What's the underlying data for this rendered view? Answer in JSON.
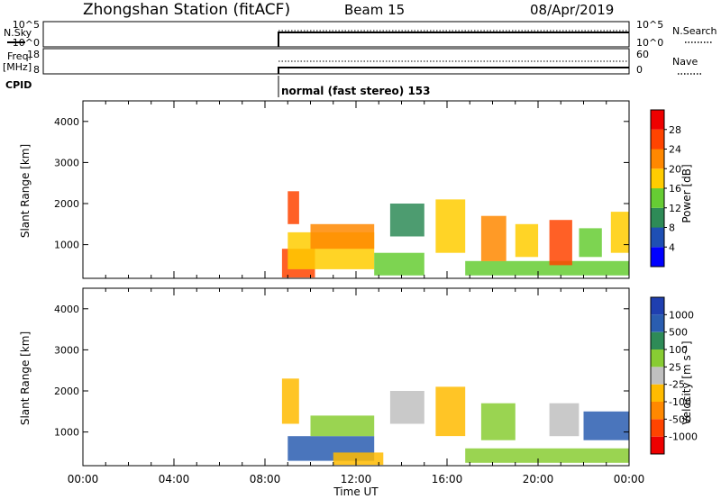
{
  "header": {
    "station": "Zhongshan Station (fitACF)",
    "beam": "Beam 15",
    "date": "08/Apr/2019"
  },
  "sky_panel": {
    "left_label": "N.Sky",
    "left_ticks": [
      "10^5",
      "10^0"
    ],
    "right_ticks": [
      "10^5",
      "10^0"
    ],
    "right_label": "N.Search"
  },
  "freq_panel": {
    "left_label_line1": "Freq.",
    "left_label_line2": "[MHz]",
    "left_ticks": [
      "18",
      "8"
    ],
    "right_ticks": [
      "60",
      "0"
    ],
    "right_label": "Nave",
    "cpid_label": "CPID",
    "cpid_text": "normal (fast stereo) 153"
  },
  "x_axis": {
    "ticks": [
      "00:00",
      "04:00",
      "08:00",
      "12:00",
      "16:00",
      "20:00",
      "00:00"
    ],
    "label": "Time UT",
    "range_hours": [
      0,
      24
    ],
    "data_start_hours": 8.75
  },
  "colors": {
    "power_scale": [
      "#0000ff",
      "#1e4fb4",
      "#2e8b57",
      "#66cc33",
      "#ffcc00",
      "#ff8800",
      "#ff4400",
      "#ee0000"
    ],
    "velocity_scale": [
      "#ee0000",
      "#ff4400",
      "#ff8800",
      "#ffbb00",
      "#c0c0c0",
      "#88cc33",
      "#2e8b57",
      "#2a5db0",
      "#1f3fb0"
    ]
  },
  "chart_data": [
    {
      "type": "heatmap",
      "name_on_chart": "",
      "ylabel": "Slant Range [km]",
      "yticks": [
        "1000",
        "2000",
        "3000",
        "4000"
      ],
      "ylim": [
        180,
        4500
      ],
      "colorbar_label": "Power [dB]",
      "colorbar_ticks": [
        "4",
        "8",
        "12",
        "16",
        "20",
        "24",
        "28"
      ],
      "colorbar_range": [
        0,
        30
      ],
      "regions": [
        {
          "t0": 8.75,
          "t1": 10.2,
          "r0": 200,
          "r1": 900,
          "value": 24
        },
        {
          "t0": 9.0,
          "t1": 12.8,
          "r0": 400,
          "r1": 1300,
          "value": 16
        },
        {
          "t0": 10.0,
          "t1": 12.8,
          "r0": 900,
          "r1": 1500,
          "value": 20
        },
        {
          "t0": 12.8,
          "t1": 15.0,
          "r0": 250,
          "r1": 800,
          "value": 12
        },
        {
          "t0": 9.0,
          "t1": 9.5,
          "r0": 1500,
          "r1": 2300,
          "value": 24
        },
        {
          "t0": 13.5,
          "t1": 15.0,
          "r0": 1200,
          "r1": 2000,
          "value": 8
        },
        {
          "t0": 15.5,
          "t1": 16.8,
          "r0": 800,
          "r1": 2100,
          "value": 16
        },
        {
          "t0": 16.8,
          "t1": 24.0,
          "r0": 250,
          "r1": 600,
          "value": 12
        },
        {
          "t0": 17.5,
          "t1": 18.6,
          "r0": 600,
          "r1": 1700,
          "value": 20
        },
        {
          "t0": 19.0,
          "t1": 20.0,
          "r0": 700,
          "r1": 1500,
          "value": 16
        },
        {
          "t0": 20.5,
          "t1": 21.5,
          "r0": 500,
          "r1": 1600,
          "value": 24
        },
        {
          "t0": 21.8,
          "t1": 22.8,
          "r0": 700,
          "r1": 1400,
          "value": 12
        },
        {
          "t0": 23.2,
          "t1": 24.0,
          "r0": 800,
          "r1": 1800,
          "value": 16
        }
      ]
    },
    {
      "type": "heatmap",
      "name_on_chart": "",
      "ylabel": "Slant Range [km]",
      "yticks": [
        "1000",
        "2000",
        "3000",
        "4000"
      ],
      "ylim": [
        180,
        4500
      ],
      "colorbar_label": "Velocity [m s⁻¹]",
      "colorbar_ticks": [
        "-1000",
        "-500",
        "-100",
        "-25",
        "25",
        "100",
        "500",
        "1000"
      ],
      "colorbar_range": [
        -1200,
        1200
      ],
      "regions": [
        {
          "t0": 8.75,
          "t1": 9.5,
          "r0": 1200,
          "r1": 2300,
          "value": -300
        },
        {
          "t0": 9.0,
          "t1": 12.8,
          "r0": 300,
          "r1": 900,
          "value": 700
        },
        {
          "t0": 10.0,
          "t1": 12.8,
          "r0": 900,
          "r1": 1400,
          "value": 300
        },
        {
          "t0": 11.0,
          "t1": 13.2,
          "r0": 200,
          "r1": 500,
          "value": -300
        },
        {
          "t0": 13.5,
          "t1": 15.0,
          "r0": 1200,
          "r1": 2000,
          "value": 60
        },
        {
          "t0": 15.5,
          "t1": 16.8,
          "r0": 900,
          "r1": 2100,
          "value": -300
        },
        {
          "t0": 16.8,
          "t1": 24.0,
          "r0": 250,
          "r1": 600,
          "value": 300
        },
        {
          "t0": 17.5,
          "t1": 19.0,
          "r0": 800,
          "r1": 1700,
          "value": 300
        },
        {
          "t0": 20.5,
          "t1": 21.8,
          "r0": 900,
          "r1": 1700,
          "value": 60
        },
        {
          "t0": 22.0,
          "t1": 24.0,
          "r0": 800,
          "r1": 1500,
          "value": 800
        }
      ]
    }
  ]
}
